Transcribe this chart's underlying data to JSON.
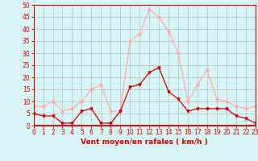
{
  "hours": [
    0,
    1,
    2,
    3,
    4,
    5,
    6,
    7,
    8,
    9,
    10,
    11,
    12,
    13,
    14,
    15,
    16,
    17,
    18,
    19,
    20,
    21,
    22,
    23
  ],
  "wind_avg": [
    5,
    4,
    4,
    1,
    1,
    6,
    7,
    1,
    1,
    6,
    16,
    17,
    22,
    24,
    14,
    11,
    6,
    7,
    7,
    7,
    7,
    4,
    3,
    1
  ],
  "wind_gust": [
    8,
    8,
    10,
    6,
    7,
    10,
    15,
    17,
    6,
    6,
    35,
    38,
    48,
    45,
    39,
    30,
    10,
    17,
    23,
    11,
    10,
    8,
    7,
    8
  ],
  "color_avg": "#cc0000",
  "color_gust": "#ffaaaa",
  "bg_color": "#d8f5f5",
  "grid_color": "#b0b0b0",
  "xlabel": "Vent moyen/en rafales ( km/h )",
  "ylim": [
    0,
    50
  ],
  "yticks": [
    0,
    5,
    10,
    15,
    20,
    25,
    30,
    35,
    40,
    45,
    50
  ],
  "axis_label_fontsize": 6.5,
  "tick_fontsize": 5.5
}
